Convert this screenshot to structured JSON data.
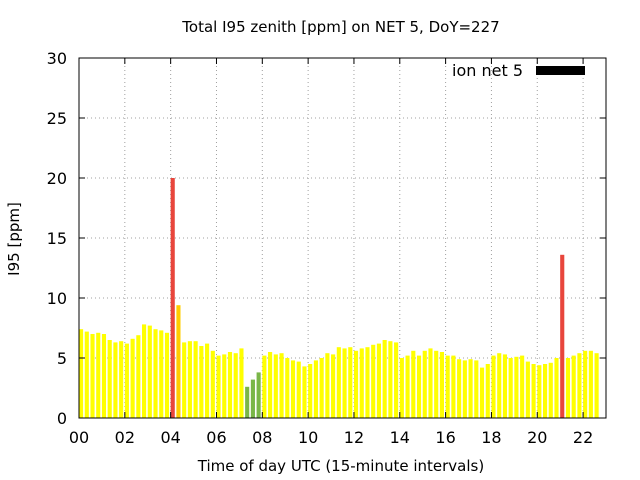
{
  "chart_data": {
    "type": "bar",
    "title": "Total I95 zenith [ppm] on NET 5, DoY=227",
    "xlabel": "Time of day UTC (15-minute intervals)",
    "ylabel": "I95 [ppm]",
    "ylim": [
      0,
      30
    ],
    "xlim": [
      0,
      23
    ],
    "grid": true,
    "legend": {
      "position": "top-right",
      "entries": [
        {
          "name": "ion net 5",
          "color": "#000000"
        }
      ]
    },
    "y_ticks": [
      "0",
      "5",
      "10",
      "15",
      "20",
      "25",
      "30"
    ],
    "x_ticks": [
      "00",
      "02",
      "04",
      "06",
      "08",
      "10",
      "12",
      "14",
      "16",
      "18",
      "20",
      "22"
    ],
    "x_tick_values": [
      0,
      2,
      4,
      6,
      8,
      10,
      12,
      14,
      16,
      18,
      20,
      22
    ],
    "interval_hours": 0.25,
    "color_levels": [
      {
        "level": "low",
        "color": "#7ab648"
      },
      {
        "level": "normal",
        "color": "#ffff00"
      },
      {
        "level": "elevated",
        "color": "#ffcc00"
      },
      {
        "level": "high",
        "color": "#e8463c"
      }
    ],
    "bars": [
      {
        "x": 0.0,
        "y": 7.4,
        "level": "normal"
      },
      {
        "x": 0.25,
        "y": 7.2,
        "level": "normal"
      },
      {
        "x": 0.5,
        "y": 7.0,
        "level": "normal"
      },
      {
        "x": 0.75,
        "y": 7.1,
        "level": "normal"
      },
      {
        "x": 1.0,
        "y": 7.0,
        "level": "normal"
      },
      {
        "x": 1.25,
        "y": 6.5,
        "level": "normal"
      },
      {
        "x": 1.5,
        "y": 6.3,
        "level": "normal"
      },
      {
        "x": 1.75,
        "y": 6.4,
        "level": "normal"
      },
      {
        "x": 2.0,
        "y": 6.2,
        "level": "normal"
      },
      {
        "x": 2.25,
        "y": 6.6,
        "level": "normal"
      },
      {
        "x": 2.5,
        "y": 6.9,
        "level": "normal"
      },
      {
        "x": 2.75,
        "y": 7.8,
        "level": "normal"
      },
      {
        "x": 3.0,
        "y": 7.7,
        "level": "normal"
      },
      {
        "x": 3.25,
        "y": 7.4,
        "level": "normal"
      },
      {
        "x": 3.5,
        "y": 7.3,
        "level": "normal"
      },
      {
        "x": 3.75,
        "y": 7.1,
        "level": "normal"
      },
      {
        "x": 4.0,
        "y": 20.0,
        "level": "high"
      },
      {
        "x": 4.25,
        "y": 9.4,
        "level": "elevated"
      },
      {
        "x": 4.5,
        "y": 6.3,
        "level": "normal"
      },
      {
        "x": 4.75,
        "y": 6.4,
        "level": "normal"
      },
      {
        "x": 5.0,
        "y": 6.4,
        "level": "normal"
      },
      {
        "x": 5.25,
        "y": 6.0,
        "level": "normal"
      },
      {
        "x": 5.5,
        "y": 6.2,
        "level": "normal"
      },
      {
        "x": 5.75,
        "y": 5.6,
        "level": "normal"
      },
      {
        "x": 6.0,
        "y": 5.2,
        "level": "normal"
      },
      {
        "x": 6.25,
        "y": 5.3,
        "level": "normal"
      },
      {
        "x": 6.5,
        "y": 5.5,
        "level": "normal"
      },
      {
        "x": 6.75,
        "y": 5.4,
        "level": "normal"
      },
      {
        "x": 7.0,
        "y": 5.8,
        "level": "normal"
      },
      {
        "x": 7.25,
        "y": 2.6,
        "level": "low"
      },
      {
        "x": 7.5,
        "y": 3.2,
        "level": "low"
      },
      {
        "x": 7.75,
        "y": 3.8,
        "level": "low"
      },
      {
        "x": 8.0,
        "y": 5.2,
        "level": "normal"
      },
      {
        "x": 8.25,
        "y": 5.5,
        "level": "normal"
      },
      {
        "x": 8.5,
        "y": 5.3,
        "level": "normal"
      },
      {
        "x": 8.75,
        "y": 5.4,
        "level": "normal"
      },
      {
        "x": 9.0,
        "y": 5.0,
        "level": "normal"
      },
      {
        "x": 9.25,
        "y": 4.8,
        "level": "normal"
      },
      {
        "x": 9.5,
        "y": 4.7,
        "level": "normal"
      },
      {
        "x": 9.75,
        "y": 4.3,
        "level": "normal"
      },
      {
        "x": 10.0,
        "y": 4.5,
        "level": "normal"
      },
      {
        "x": 10.25,
        "y": 4.8,
        "level": "normal"
      },
      {
        "x": 10.5,
        "y": 5.0,
        "level": "normal"
      },
      {
        "x": 10.75,
        "y": 5.4,
        "level": "normal"
      },
      {
        "x": 11.0,
        "y": 5.3,
        "level": "normal"
      },
      {
        "x": 11.25,
        "y": 5.9,
        "level": "normal"
      },
      {
        "x": 11.5,
        "y": 5.8,
        "level": "normal"
      },
      {
        "x": 11.75,
        "y": 5.9,
        "level": "normal"
      },
      {
        "x": 12.0,
        "y": 5.6,
        "level": "normal"
      },
      {
        "x": 12.25,
        "y": 5.8,
        "level": "normal"
      },
      {
        "x": 12.5,
        "y": 5.9,
        "level": "normal"
      },
      {
        "x": 12.75,
        "y": 6.1,
        "level": "normal"
      },
      {
        "x": 13.0,
        "y": 6.2,
        "level": "normal"
      },
      {
        "x": 13.25,
        "y": 6.5,
        "level": "normal"
      },
      {
        "x": 13.5,
        "y": 6.4,
        "level": "normal"
      },
      {
        "x": 13.75,
        "y": 6.3,
        "level": "normal"
      },
      {
        "x": 14.0,
        "y": 5.0,
        "level": "normal"
      },
      {
        "x": 14.25,
        "y": 5.2,
        "level": "normal"
      },
      {
        "x": 14.5,
        "y": 5.6,
        "level": "normal"
      },
      {
        "x": 14.75,
        "y": 5.2,
        "level": "normal"
      },
      {
        "x": 15.0,
        "y": 5.6,
        "level": "normal"
      },
      {
        "x": 15.25,
        "y": 5.8,
        "level": "normal"
      },
      {
        "x": 15.5,
        "y": 5.6,
        "level": "normal"
      },
      {
        "x": 15.75,
        "y": 5.5,
        "level": "normal"
      },
      {
        "x": 16.0,
        "y": 5.2,
        "level": "normal"
      },
      {
        "x": 16.25,
        "y": 5.2,
        "level": "normal"
      },
      {
        "x": 16.5,
        "y": 4.9,
        "level": "normal"
      },
      {
        "x": 16.75,
        "y": 4.8,
        "level": "normal"
      },
      {
        "x": 17.0,
        "y": 4.9,
        "level": "normal"
      },
      {
        "x": 17.25,
        "y": 4.8,
        "level": "normal"
      },
      {
        "x": 17.5,
        "y": 4.2,
        "level": "normal"
      },
      {
        "x": 17.75,
        "y": 4.5,
        "level": "normal"
      },
      {
        "x": 18.0,
        "y": 5.2,
        "level": "normal"
      },
      {
        "x": 18.25,
        "y": 5.4,
        "level": "normal"
      },
      {
        "x": 18.5,
        "y": 5.3,
        "level": "normal"
      },
      {
        "x": 18.75,
        "y": 5.0,
        "level": "normal"
      },
      {
        "x": 19.0,
        "y": 5.1,
        "level": "normal"
      },
      {
        "x": 19.25,
        "y": 5.2,
        "level": "normal"
      },
      {
        "x": 19.5,
        "y": 4.7,
        "level": "normal"
      },
      {
        "x": 19.75,
        "y": 4.5,
        "level": "normal"
      },
      {
        "x": 20.0,
        "y": 4.4,
        "level": "normal"
      },
      {
        "x": 20.25,
        "y": 4.5,
        "level": "normal"
      },
      {
        "x": 20.5,
        "y": 4.6,
        "level": "normal"
      },
      {
        "x": 20.75,
        "y": 5.0,
        "level": "normal"
      },
      {
        "x": 21.0,
        "y": 13.6,
        "level": "high"
      },
      {
        "x": 21.25,
        "y": 5.0,
        "level": "normal"
      },
      {
        "x": 21.5,
        "y": 5.2,
        "level": "normal"
      },
      {
        "x": 21.75,
        "y": 5.4,
        "level": "normal"
      },
      {
        "x": 22.0,
        "y": 5.6,
        "level": "normal"
      },
      {
        "x": 22.25,
        "y": 5.6,
        "level": "normal"
      },
      {
        "x": 22.5,
        "y": 5.4,
        "level": "normal"
      }
    ]
  }
}
